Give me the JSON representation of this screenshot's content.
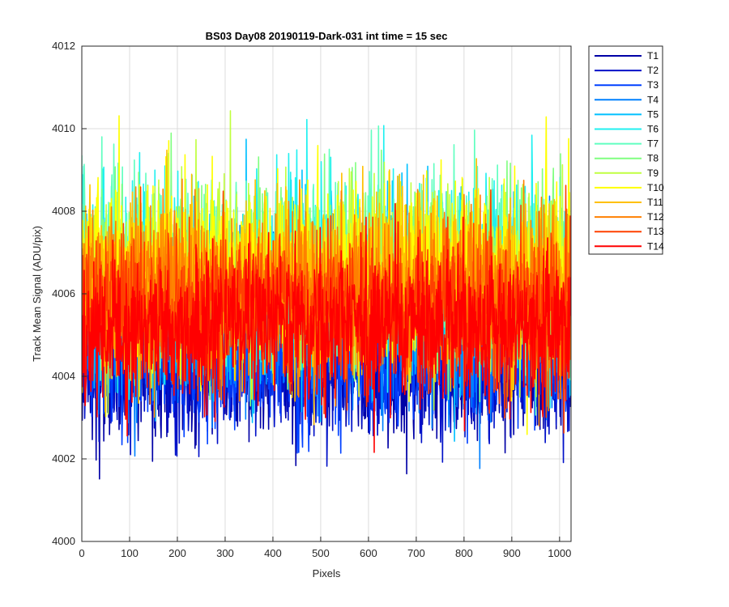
{
  "chart_data": {
    "type": "line",
    "title": "BS03 Day08 20190119-Dark-031 int time = 15 sec",
    "xlabel": "Pixels",
    "ylabel": "Track Mean Signal (ADU/pix)",
    "xlim": [
      0,
      1024
    ],
    "ylim": [
      4000,
      4012
    ],
    "xticks": [
      0,
      100,
      200,
      300,
      400,
      500,
      600,
      700,
      800,
      900,
      1000
    ],
    "yticks": [
      4000,
      4002,
      4004,
      4006,
      4008,
      4010,
      4012
    ],
    "grid": true,
    "legend_position": "outside-top-right",
    "n_points": 1024,
    "series": [
      {
        "name": "T1",
        "color": "#0000a6",
        "mean": 4004.3,
        "spread": 0.9
      },
      {
        "name": "T2",
        "color": "#0010c8",
        "mean": 4004.4,
        "spread": 0.9
      },
      {
        "name": "T3",
        "color": "#0040ff",
        "mean": 4004.6,
        "spread": 0.9
      },
      {
        "name": "T4",
        "color": "#0080ff",
        "mean": 4005.4,
        "spread": 1.0
      },
      {
        "name": "T5",
        "color": "#00c0ff",
        "mean": 4006.0,
        "spread": 1.1
      },
      {
        "name": "T6",
        "color": "#20f0f0",
        "mean": 4006.6,
        "spread": 1.1
      },
      {
        "name": "T7",
        "color": "#60ffc0",
        "mean": 4006.5,
        "spread": 1.1
      },
      {
        "name": "T8",
        "color": "#80ff80",
        "mean": 4006.3,
        "spread": 1.1
      },
      {
        "name": "T9",
        "color": "#c0ff40",
        "mean": 4006.3,
        "spread": 1.1
      },
      {
        "name": "T10",
        "color": "#ffff00",
        "mean": 4006.4,
        "spread": 1.1
      },
      {
        "name": "T11",
        "color": "#ffc000",
        "mean": 4006.2,
        "spread": 1.0
      },
      {
        "name": "T12",
        "color": "#ff8000",
        "mean": 4006.0,
        "spread": 1.0
      },
      {
        "name": "T13",
        "color": "#ff4000",
        "mean": 4005.6,
        "spread": 0.9
      },
      {
        "name": "T14",
        "color": "#ff0000",
        "mean": 4005.2,
        "spread": 0.9
      }
    ]
  }
}
